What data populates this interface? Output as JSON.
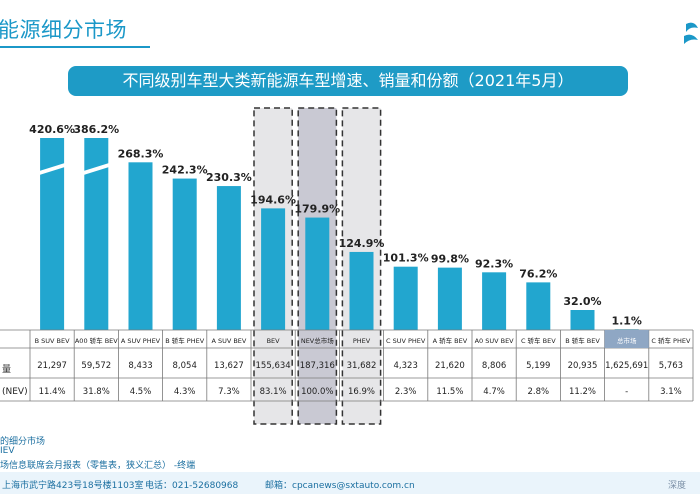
{
  "header": {
    "title": "能源细分市场",
    "banner": "不同级别车型大类新能源车型增速、销量和份额（2021年5月）"
  },
  "table": {
    "row_labels": [
      "量",
      "(NEV)"
    ]
  },
  "chart_data": {
    "type": "bar",
    "title": "不同级别车型大类新能源车型增速、销量和份额（2021年5月）",
    "categories": [
      "B SUV BEV",
      "A00 轿车 BEV",
      "A SUV PHEV",
      "B 轿车 PHEV",
      "A SUV BEV",
      "BEV",
      "NEV总市场",
      "PHEV",
      "C SUV PHEV",
      "A 轿车 BEV",
      "A0 SUV BEV",
      "C 轿车 BEV",
      "B 轿车 BEV",
      "总市场",
      "C 轿车 PHEV"
    ],
    "series": [
      {
        "values": [
          420.6,
          386.2,
          268.3,
          242.3,
          230.3,
          194.6,
          179.9,
          124.9,
          101.3,
          99.8,
          92.3,
          76.2,
          32.0,
          1.1,
          null
        ]
      }
    ],
    "value_labels": [
      "420.6%",
      "386.2%",
      "268.3%",
      "242.3%",
      "230.3%",
      "194.6%",
      "179.9%",
      "124.9%",
      "101.3%",
      "99.8%",
      "92.3%",
      "76.2%",
      "32.0%",
      "1.1%",
      ""
    ],
    "sales": [
      "21,297",
      "59,572",
      "8,433",
      "8,054",
      "13,627",
      "155,634",
      "187,316",
      "31,682",
      "4,323",
      "21,620",
      "8,806",
      "5,199",
      "20,935",
      "1,625,691",
      "5,763"
    ],
    "shares": [
      "11.4%",
      "31.8%",
      "4.5%",
      "4.3%",
      "7.3%",
      "83.1%",
      "100.0%",
      "16.9%",
      "2.3%",
      "11.5%",
      "4.7%",
      "2.8%",
      "11.2%",
      "-",
      "3.1%"
    ],
    "axis_break_categories": [
      "B SUV BEV",
      "A00 轿车 BEV"
    ],
    "highlighted_categories": [
      "BEV",
      "NEV总市场",
      "PHEV"
    ],
    "colors": {
      "bar": "#22a6cf",
      "nev_bar": "#27a7cf",
      "highlight_fill": "#e6e6e8",
      "nev_highlight_fill": "#c9c9d3",
      "total_cell": "#8fa7c4",
      "banner": "#1e9bc6"
    }
  },
  "notes": {
    "line1": "的细分市场",
    "line2": "IEV",
    "line3": "场信息联席会月报表（零售表，狭义汇总）   -终端"
  },
  "footer": {
    "address": "上海市武宁路423号18号楼1103室",
    "phone": "电话：021-52680968",
    "email": "邮箱：cpcanews@sxtauto.com.cn",
    "brand": "深度"
  }
}
